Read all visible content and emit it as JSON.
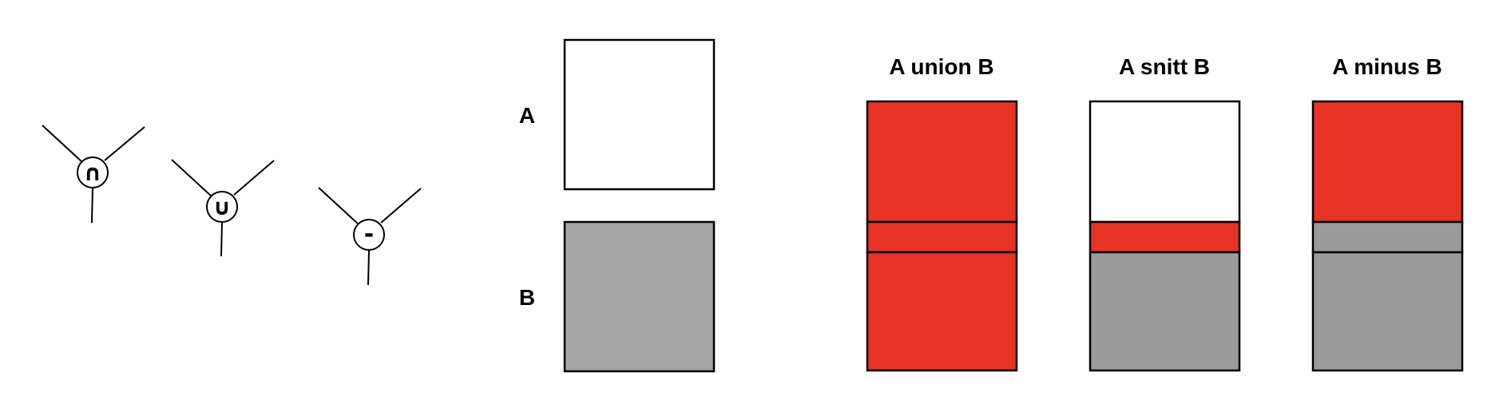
{
  "operators": [
    {
      "symbol": "∩",
      "name": "intersection"
    },
    {
      "symbol": "∪",
      "name": "union"
    },
    {
      "symbol": "-",
      "name": "minus"
    }
  ],
  "inputs": {
    "a_label": "A",
    "b_label": "B"
  },
  "results": [
    {
      "title": "A union B",
      "top": "red",
      "middle": "red",
      "bottom": "red"
    },
    {
      "title": "A snitt B",
      "top": "white",
      "middle": "red",
      "bottom": "gray"
    },
    {
      "title": "A minus B",
      "top": "red",
      "middle": "gray",
      "bottom": "gray"
    }
  ],
  "colors": {
    "red": "#e63323",
    "gray": "#9b9b9b",
    "light_gray": "#a6a6a6",
    "white": "#ffffff",
    "stroke": "#000000"
  }
}
